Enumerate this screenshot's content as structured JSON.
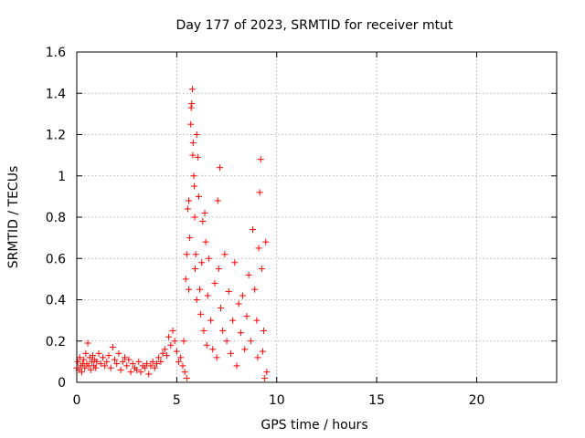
{
  "chart_data": {
    "type": "scatter",
    "title": "Day 177 of 2023, SRMTID for receiver mtut",
    "xlabel": "GPS time / hours",
    "ylabel": "SRMTID / TECUs",
    "xlim": [
      0,
      24
    ],
    "ylim": [
      0,
      1.6
    ],
    "xticks": [
      0,
      5,
      10,
      15,
      20
    ],
    "yticks": [
      0,
      0.2,
      0.4,
      0.6,
      0.8,
      1,
      1.2,
      1.4,
      1.6
    ],
    "xtick_labels": [
      "0",
      "5",
      "10",
      "15",
      "20"
    ],
    "ytick_labels": [
      "0",
      "0.2",
      "0.4",
      "0.6",
      "0.8",
      "1",
      "1.2",
      "1.4",
      "1.6"
    ],
    "grid": true,
    "marker": "plus",
    "color": "#ff0000",
    "series": [
      {
        "name": "SRMTID",
        "points": [
          [
            0.0,
            0.07
          ],
          [
            0.05,
            0.1
          ],
          [
            0.1,
            0.06
          ],
          [
            0.15,
            0.12
          ],
          [
            0.2,
            0.08
          ],
          [
            0.25,
            0.05
          ],
          [
            0.3,
            0.09
          ],
          [
            0.35,
            0.11
          ],
          [
            0.4,
            0.07
          ],
          [
            0.45,
            0.14
          ],
          [
            0.5,
            0.09
          ],
          [
            0.55,
            0.19
          ],
          [
            0.6,
            0.08
          ],
          [
            0.65,
            0.12
          ],
          [
            0.7,
            0.06
          ],
          [
            0.75,
            0.1
          ],
          [
            0.8,
            0.13
          ],
          [
            0.85,
            0.08
          ],
          [
            0.9,
            0.11
          ],
          [
            0.95,
            0.07
          ],
          [
            1.0,
            0.1
          ],
          [
            1.1,
            0.14
          ],
          [
            1.2,
            0.09
          ],
          [
            1.3,
            0.12
          ],
          [
            1.4,
            0.08
          ],
          [
            1.5,
            0.1
          ],
          [
            1.6,
            0.13
          ],
          [
            1.7,
            0.07
          ],
          [
            1.8,
            0.17
          ],
          [
            1.9,
            0.11
          ],
          [
            2.0,
            0.09
          ],
          [
            2.1,
            0.14
          ],
          [
            2.2,
            0.06
          ],
          [
            2.3,
            0.1
          ],
          [
            2.4,
            0.12
          ],
          [
            2.5,
            0.08
          ],
          [
            2.6,
            0.11
          ],
          [
            2.7,
            0.05
          ],
          [
            2.8,
            0.09
          ],
          [
            2.9,
            0.07
          ],
          [
            3.0,
            0.06
          ],
          [
            3.1,
            0.1
          ],
          [
            3.2,
            0.05
          ],
          [
            3.3,
            0.08
          ],
          [
            3.4,
            0.07
          ],
          [
            3.5,
            0.09
          ],
          [
            3.6,
            0.04
          ],
          [
            3.7,
            0.08
          ],
          [
            3.8,
            0.1
          ],
          [
            3.9,
            0.07
          ],
          [
            4.0,
            0.09
          ],
          [
            4.1,
            0.12
          ],
          [
            4.2,
            0.1
          ],
          [
            4.3,
            0.14
          ],
          [
            4.4,
            0.16
          ],
          [
            4.5,
            0.13
          ],
          [
            4.6,
            0.22
          ],
          [
            4.7,
            0.18
          ],
          [
            4.8,
            0.25
          ],
          [
            4.9,
            0.2
          ],
          [
            5.0,
            0.15
          ],
          [
            5.1,
            0.1
          ],
          [
            5.2,
            0.12
          ],
          [
            5.3,
            0.08
          ],
          [
            5.35,
            0.2
          ],
          [
            5.4,
            0.05
          ],
          [
            5.45,
            0.5
          ],
          [
            5.5,
            0.02
          ],
          [
            5.5,
            0.62
          ],
          [
            5.55,
            0.84
          ],
          [
            5.6,
            0.45
          ],
          [
            5.6,
            0.88
          ],
          [
            5.65,
            0.7
          ],
          [
            5.7,
            1.25
          ],
          [
            5.72,
            1.33
          ],
          [
            5.75,
            1.35
          ],
          [
            5.78,
            1.42
          ],
          [
            5.8,
            1.1
          ],
          [
            5.82,
            1.16
          ],
          [
            5.85,
            1.0
          ],
          [
            5.88,
            0.95
          ],
          [
            5.9,
            0.8
          ],
          [
            5.92,
            0.55
          ],
          [
            5.95,
            0.62
          ],
          [
            6.0,
            1.2
          ],
          [
            6.0,
            0.4
          ],
          [
            6.05,
            1.09
          ],
          [
            6.1,
            0.9
          ],
          [
            6.15,
            0.45
          ],
          [
            6.2,
            0.33
          ],
          [
            6.25,
            0.58
          ],
          [
            6.3,
            0.78
          ],
          [
            6.35,
            0.25
          ],
          [
            6.4,
            0.82
          ],
          [
            6.45,
            0.68
          ],
          [
            6.5,
            0.18
          ],
          [
            6.55,
            0.42
          ],
          [
            6.6,
            0.6
          ],
          [
            6.7,
            0.3
          ],
          [
            6.8,
            0.16
          ],
          [
            6.9,
            0.48
          ],
          [
            7.0,
            0.12
          ],
          [
            7.05,
            0.88
          ],
          [
            7.1,
            0.55
          ],
          [
            7.15,
            1.04
          ],
          [
            7.2,
            0.36
          ],
          [
            7.3,
            0.25
          ],
          [
            7.4,
            0.62
          ],
          [
            7.5,
            0.2
          ],
          [
            7.6,
            0.44
          ],
          [
            7.7,
            0.14
          ],
          [
            7.8,
            0.3
          ],
          [
            7.9,
            0.58
          ],
          [
            8.0,
            0.08
          ],
          [
            8.1,
            0.38
          ],
          [
            8.2,
            0.24
          ],
          [
            8.3,
            0.42
          ],
          [
            8.4,
            0.16
          ],
          [
            8.5,
            0.32
          ],
          [
            8.6,
            0.52
          ],
          [
            8.7,
            0.2
          ],
          [
            8.8,
            0.74
          ],
          [
            8.9,
            0.45
          ],
          [
            9.0,
            0.3
          ],
          [
            9.05,
            0.12
          ],
          [
            9.1,
            0.65
          ],
          [
            9.15,
            0.92
          ],
          [
            9.2,
            1.08
          ],
          [
            9.25,
            0.55
          ],
          [
            9.3,
            0.15
          ],
          [
            9.35,
            0.25
          ],
          [
            9.4,
            0.02
          ],
          [
            9.45,
            0.68
          ],
          [
            9.5,
            0.05
          ]
        ]
      }
    ]
  }
}
